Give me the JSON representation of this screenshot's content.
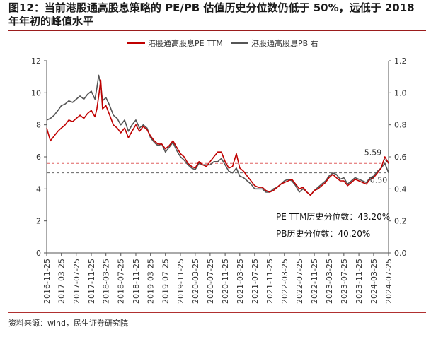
{
  "title": "图12：当前港股通高股息策略的 PE/PB 估值历史分位数仍低于 50%，远低于 2018 年年初的峰值水平",
  "source": "资料来源：wind，民生证券研究院",
  "chart_data": {
    "type": "line",
    "legend_position": "top-center",
    "grid": false,
    "x_ticks": [
      "2016-11-25",
      "2017-03-25",
      "2017-07-25",
      "2017-11-25",
      "2018-03-25",
      "2018-07-25",
      "2018-11-25",
      "2019-03-25",
      "2019-07-25",
      "2019-11-25",
      "2020-03-25",
      "2020-07-25",
      "2020-11-25",
      "2021-03-25",
      "2021-07-25",
      "2021-11-25",
      "2022-03-25",
      "2022-07-25",
      "2022-11-25",
      "2023-03-25",
      "2023-07-25",
      "2023-11-25",
      "2024-03-25",
      "2024-07-25"
    ],
    "left_axis": {
      "ylim": [
        0,
        12
      ],
      "ticks": [
        "0",
        "2",
        "4",
        "6",
        "8",
        "10",
        "12"
      ]
    },
    "right_axis": {
      "ylim": [
        0,
        1.2
      ],
      "ticks": [
        "0.0",
        "0.2",
        "0.4",
        "0.6",
        "0.8",
        "1.0",
        "1.2"
      ]
    },
    "series": [
      {
        "name": "港股通高股息PE TTM",
        "axis": "left",
        "color": "#c00000",
        "x": [
          "2016-11-25",
          "2016-12-25",
          "2017-01-25",
          "2017-02-25",
          "2017-03-25",
          "2017-04-25",
          "2017-05-25",
          "2017-06-25",
          "2017-07-25",
          "2017-08-25",
          "2017-09-25",
          "2017-10-25",
          "2017-11-25",
          "2017-12-25",
          "2018-01-10",
          "2018-01-25",
          "2018-02-10",
          "2018-02-25",
          "2018-03-25",
          "2018-04-25",
          "2018-05-25",
          "2018-06-25",
          "2018-07-25",
          "2018-08-25",
          "2018-09-25",
          "2018-10-25",
          "2018-11-25",
          "2018-12-25",
          "2019-01-25",
          "2019-02-25",
          "2019-03-25",
          "2019-04-25",
          "2019-05-25",
          "2019-06-25",
          "2019-07-25",
          "2019-08-25",
          "2019-09-25",
          "2019-10-25",
          "2019-11-25",
          "2019-12-25",
          "2020-01-25",
          "2020-02-25",
          "2020-03-25",
          "2020-04-25",
          "2020-05-25",
          "2020-06-25",
          "2020-07-25",
          "2020-08-25",
          "2020-09-25",
          "2020-10-25",
          "2020-11-25",
          "2020-12-25",
          "2021-01-25",
          "2021-02-25",
          "2021-03-25",
          "2021-04-25",
          "2021-05-25",
          "2021-06-25",
          "2021-07-25",
          "2021-08-25",
          "2021-09-25",
          "2021-10-25",
          "2021-11-25",
          "2021-12-25",
          "2022-01-25",
          "2022-02-25",
          "2022-03-25",
          "2022-04-25",
          "2022-05-25",
          "2022-06-25",
          "2022-07-25",
          "2022-08-25",
          "2022-09-25",
          "2022-10-25",
          "2022-11-25",
          "2022-12-25",
          "2023-01-25",
          "2023-02-25",
          "2023-03-25",
          "2023-04-25",
          "2023-05-25",
          "2023-06-25",
          "2023-07-25",
          "2023-08-25",
          "2023-09-25",
          "2023-10-25",
          "2023-11-25",
          "2023-12-25",
          "2024-01-25",
          "2024-02-25",
          "2024-03-25",
          "2024-04-25",
          "2024-05-25",
          "2024-06-25",
          "2024-07-25"
        ],
        "values": [
          7.8,
          7.0,
          7.3,
          7.6,
          7.8,
          8.0,
          8.3,
          8.2,
          8.4,
          8.6,
          8.4,
          8.7,
          8.9,
          8.5,
          9.0,
          9.8,
          10.8,
          9.0,
          9.2,
          8.6,
          8.0,
          7.8,
          7.5,
          7.8,
          7.2,
          7.6,
          8.0,
          7.6,
          7.9,
          7.7,
          7.3,
          7.0,
          6.8,
          6.8,
          6.5,
          6.7,
          7.0,
          6.6,
          6.2,
          6.0,
          5.6,
          5.4,
          5.3,
          5.7,
          5.5,
          5.4,
          5.7,
          6.0,
          6.3,
          6.3,
          5.7,
          5.3,
          5.4,
          6.2,
          5.3,
          5.1,
          4.8,
          4.5,
          4.2,
          4.1,
          4.1,
          3.9,
          3.8,
          3.9,
          4.1,
          4.3,
          4.4,
          4.5,
          4.6,
          4.3,
          4.0,
          4.1,
          3.8,
          3.6,
          3.9,
          4.0,
          4.2,
          4.4,
          4.7,
          4.9,
          4.7,
          4.5,
          4.5,
          4.2,
          4.4,
          4.6,
          4.5,
          4.4,
          4.3,
          4.6,
          4.7,
          5.0,
          5.3,
          6.0,
          5.59
        ]
      },
      {
        "name": "港股通高股息PB 右",
        "axis": "right",
        "color": "#555555",
        "x": [
          "2016-11-25",
          "2016-12-25",
          "2017-01-25",
          "2017-02-25",
          "2017-03-25",
          "2017-04-25",
          "2017-05-25",
          "2017-06-25",
          "2017-07-25",
          "2017-08-25",
          "2017-09-25",
          "2017-10-25",
          "2017-11-25",
          "2017-12-25",
          "2018-01-10",
          "2018-01-25",
          "2018-02-10",
          "2018-02-25",
          "2018-03-25",
          "2018-04-25",
          "2018-05-25",
          "2018-06-25",
          "2018-07-25",
          "2018-08-25",
          "2018-09-25",
          "2018-10-25",
          "2018-11-25",
          "2018-12-25",
          "2019-01-25",
          "2019-02-25",
          "2019-03-25",
          "2019-04-25",
          "2019-05-25",
          "2019-06-25",
          "2019-07-25",
          "2019-08-25",
          "2019-09-25",
          "2019-10-25",
          "2019-11-25",
          "2019-12-25",
          "2020-01-25",
          "2020-02-25",
          "2020-03-25",
          "2020-04-25",
          "2020-05-25",
          "2020-06-25",
          "2020-07-25",
          "2020-08-25",
          "2020-09-25",
          "2020-10-25",
          "2020-11-25",
          "2020-12-25",
          "2021-01-25",
          "2021-02-25",
          "2021-03-25",
          "2021-04-25",
          "2021-05-25",
          "2021-06-25",
          "2021-07-25",
          "2021-08-25",
          "2021-09-25",
          "2021-10-25",
          "2021-11-25",
          "2021-12-25",
          "2022-01-25",
          "2022-02-25",
          "2022-03-25",
          "2022-04-25",
          "2022-05-25",
          "2022-06-25",
          "2022-07-25",
          "2022-08-25",
          "2022-09-25",
          "2022-10-25",
          "2022-11-25",
          "2022-12-25",
          "2023-01-25",
          "2023-02-25",
          "2023-03-25",
          "2023-04-25",
          "2023-05-25",
          "2023-06-25",
          "2023-07-25",
          "2023-08-25",
          "2023-09-25",
          "2023-10-25",
          "2023-11-25",
          "2023-12-25",
          "2024-01-25",
          "2024-02-25",
          "2024-03-25",
          "2024-04-25",
          "2024-05-25",
          "2024-06-25",
          "2024-07-25"
        ],
        "values": [
          0.83,
          0.84,
          0.86,
          0.89,
          0.92,
          0.93,
          0.95,
          0.94,
          0.96,
          0.98,
          0.96,
          0.99,
          1.01,
          0.96,
          1.03,
          1.11,
          1.05,
          0.95,
          0.97,
          0.92,
          0.86,
          0.84,
          0.8,
          0.83,
          0.76,
          0.8,
          0.83,
          0.78,
          0.8,
          0.78,
          0.72,
          0.69,
          0.67,
          0.68,
          0.63,
          0.66,
          0.69,
          0.64,
          0.6,
          0.58,
          0.55,
          0.53,
          0.52,
          0.56,
          0.55,
          0.55,
          0.55,
          0.57,
          0.57,
          0.59,
          0.55,
          0.51,
          0.5,
          0.53,
          0.48,
          0.47,
          0.45,
          0.43,
          0.4,
          0.4,
          0.4,
          0.38,
          0.38,
          0.4,
          0.41,
          0.43,
          0.45,
          0.46,
          0.45,
          0.42,
          0.38,
          0.4,
          0.38,
          0.36,
          0.39,
          0.41,
          0.43,
          0.45,
          0.48,
          0.5,
          0.49,
          0.46,
          0.47,
          0.43,
          0.45,
          0.47,
          0.46,
          0.45,
          0.44,
          0.47,
          0.48,
          0.51,
          0.53,
          0.56,
          0.5
        ]
      }
    ],
    "reference_lines": [
      {
        "axis": "left",
        "value": 5.59,
        "color": "#e06060",
        "style": "dashed"
      },
      {
        "axis": "right",
        "value": 0.5,
        "color": "#666666",
        "style": "dashed"
      }
    ],
    "annotations": {
      "pe_last": "5.59",
      "pb_last": "0.50",
      "pe_percentile": "PE TTM历史分位数：43.20%",
      "pb_percentile": "PB历史分位数：40.20%"
    }
  }
}
